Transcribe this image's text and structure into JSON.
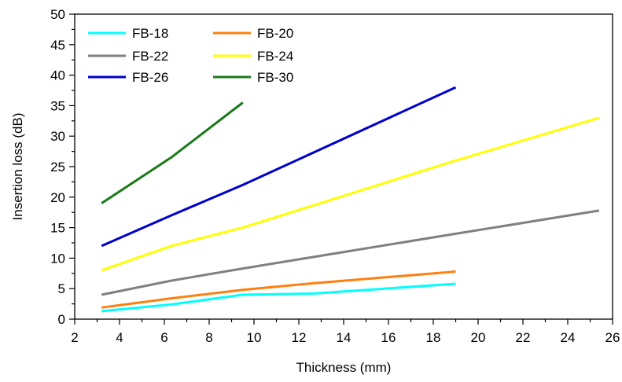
{
  "chart_data": {
    "type": "line",
    "title": "",
    "xlabel": "Thickness (mm)",
    "ylabel": "Insertion loss (dB)",
    "xlim": [
      2,
      26
    ],
    "ylim": [
      0,
      50
    ],
    "xticks": [
      2,
      4,
      6,
      8,
      10,
      12,
      14,
      16,
      18,
      20,
      22,
      24,
      26
    ],
    "yticks": [
      0,
      5,
      10,
      15,
      20,
      25,
      30,
      35,
      40,
      45,
      50
    ],
    "grid": false,
    "legend_position": "top-left",
    "series": [
      {
        "name": "FB-18",
        "color": "#00ffff",
        "x": [
          3.2,
          6.3,
          9.5,
          12.7,
          19.0
        ],
        "y": [
          1.3,
          2.4,
          4.0,
          4.2,
          5.8
        ]
      },
      {
        "name": "FB-20",
        "color": "#ff7f0e",
        "x": [
          3.2,
          6.3,
          9.5,
          12.7,
          19.0
        ],
        "y": [
          1.9,
          3.4,
          4.8,
          5.9,
          7.8
        ]
      },
      {
        "name": "FB-22",
        "color": "#808080",
        "x": [
          3.2,
          6.3,
          9.5,
          19.0,
          25.4
        ],
        "y": [
          4.0,
          6.3,
          8.3,
          14.0,
          17.8
        ]
      },
      {
        "name": "FB-24",
        "color": "#ffff00",
        "x": [
          3.2,
          6.3,
          9.5,
          19.0,
          25.4
        ],
        "y": [
          8.0,
          12.0,
          15.0,
          26.0,
          33.0
        ]
      },
      {
        "name": "FB-26",
        "color": "#0000cc",
        "x": [
          3.2,
          6.3,
          9.5,
          19.0
        ],
        "y": [
          12.0,
          17.0,
          22.0,
          38.0
        ]
      },
      {
        "name": "FB-30",
        "color": "#1a7a1a",
        "x": [
          3.2,
          6.3,
          9.5
        ],
        "y": [
          19.0,
          26.5,
          35.5
        ]
      }
    ]
  }
}
